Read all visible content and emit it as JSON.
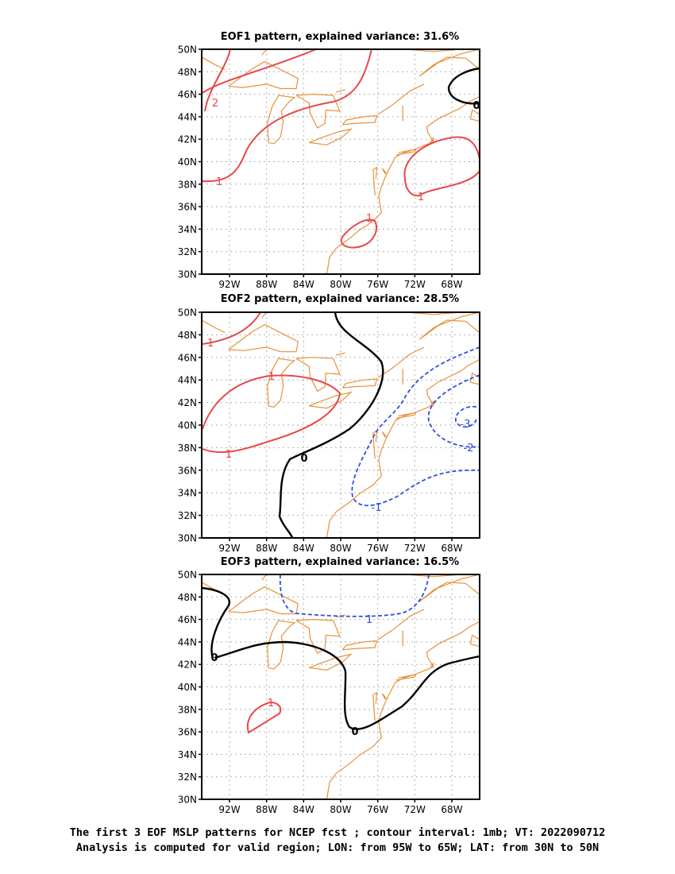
{
  "colors": {
    "coast": "#e8913a",
    "grid": "#b0b0b0",
    "positive": "#e8474a",
    "negative": "#2f4fe0",
    "zero": "#000000"
  },
  "axes": {
    "lat_ticks": [
      "30N",
      "32N",
      "34N",
      "36N",
      "38N",
      "40N",
      "42N",
      "44N",
      "46N",
      "48N",
      "50N"
    ],
    "lon_ticks": [
      "92W",
      "88W",
      "84W",
      "80W",
      "76W",
      "72W",
      "68W"
    ],
    "lat_range": [
      30,
      50
    ],
    "lon_range": [
      -95,
      -65
    ]
  },
  "panels": [
    {
      "title": "EOF1 pattern, explained variance: 31.6%",
      "contour_labels": [
        "2",
        "1",
        "1",
        "1",
        "0"
      ]
    },
    {
      "title": "EOF2 pattern, explained variance: 28.5%",
      "contour_labels": [
        "1",
        "1",
        "1",
        "0",
        "-1",
        "-2",
        "-3"
      ]
    },
    {
      "title": "EOF3 pattern, explained variance: 16.5%",
      "contour_labels": [
        "1",
        "1",
        "0",
        "0"
      ]
    }
  ],
  "caption": {
    "line1": "The first 3 EOF MSLP patterns for NCEP fcst ; contour interval: 1mb; VT: 2022090712",
    "line2": "Analysis is computed for valid region; LON: from 95W to 65W; LAT: from 30N to 50N"
  }
}
